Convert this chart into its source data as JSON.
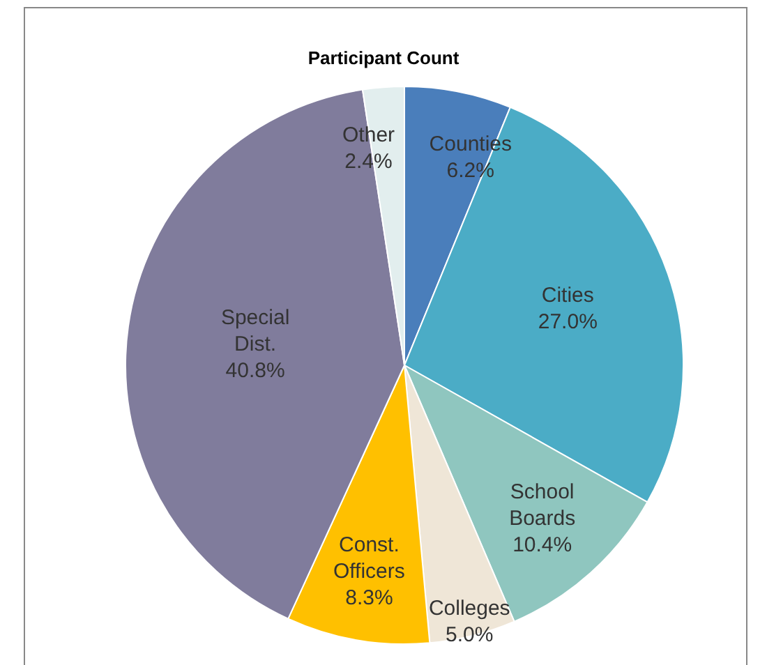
{
  "chart_data": {
    "type": "pie",
    "title": "Participant Count",
    "categories": [
      "Counties",
      "Cities",
      "School Boards",
      "Colleges",
      "Const. Officers",
      "Special Dist.",
      "Other"
    ],
    "values": [
      6.2,
      27.0,
      10.4,
      5.0,
      8.3,
      40.8,
      2.4
    ],
    "value_labels": [
      "6.2%",
      "27.0%",
      "10.4%",
      "5.0%",
      "8.3%",
      "40.8%",
      "2.4%"
    ],
    "colors": [
      "#4a7ebb",
      "#4bacc6",
      "#8fc6bf",
      "#efe6d7",
      "#ffc000",
      "#807c9c",
      "#e2eeee"
    ],
    "legend": false
  }
}
